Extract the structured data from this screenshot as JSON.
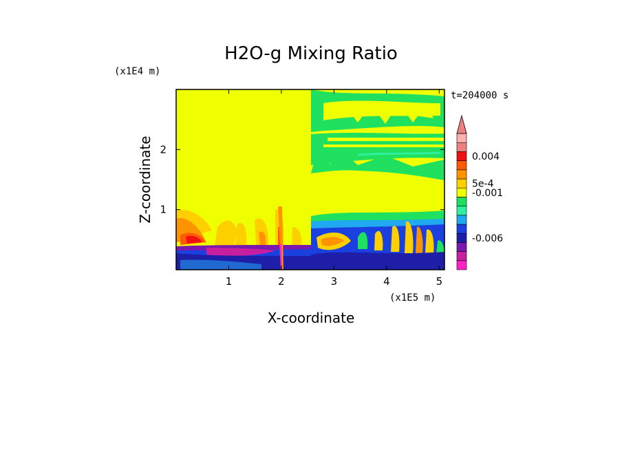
{
  "chart_data": {
    "type": "heatmap",
    "title": "H2O-g Mixing Ratio",
    "xlabel": "X-coordinate",
    "ylabel": "Z-coordinate",
    "x_scale_label": "(x1E5 m)",
    "y_scale_label": "(x1E4 m)",
    "time_label": "t=204000 s",
    "xlim": [
      0,
      5.1
    ],
    "ylim": [
      0,
      3.0
    ],
    "x_ticks": [
      1,
      2,
      3,
      4,
      5
    ],
    "y_ticks": [
      1,
      2
    ],
    "x_tick_labels": [
      "1",
      "2",
      "3",
      "4",
      "5"
    ],
    "y_tick_labels": [
      "1",
      "2"
    ],
    "colorbar": {
      "colors": [
        "#ff22c8",
        "#c81ea0",
        "#7a18b0",
        "#1e1ea8",
        "#1a40e0",
        "#20a8f0",
        "#30f0a0",
        "#20e060",
        "#f0ff00",
        "#ffd000",
        "#ff9400",
        "#ff5a00",
        "#f01010",
        "#f08080",
        "#ffb0b0"
      ],
      "tick_labels": [
        "0.004",
        "5e-4",
        "-0.001",
        "-0.006"
      ],
      "tick_levels": [
        12.5,
        9.5,
        8.5,
        3.5
      ],
      "extend": "max"
    }
  }
}
